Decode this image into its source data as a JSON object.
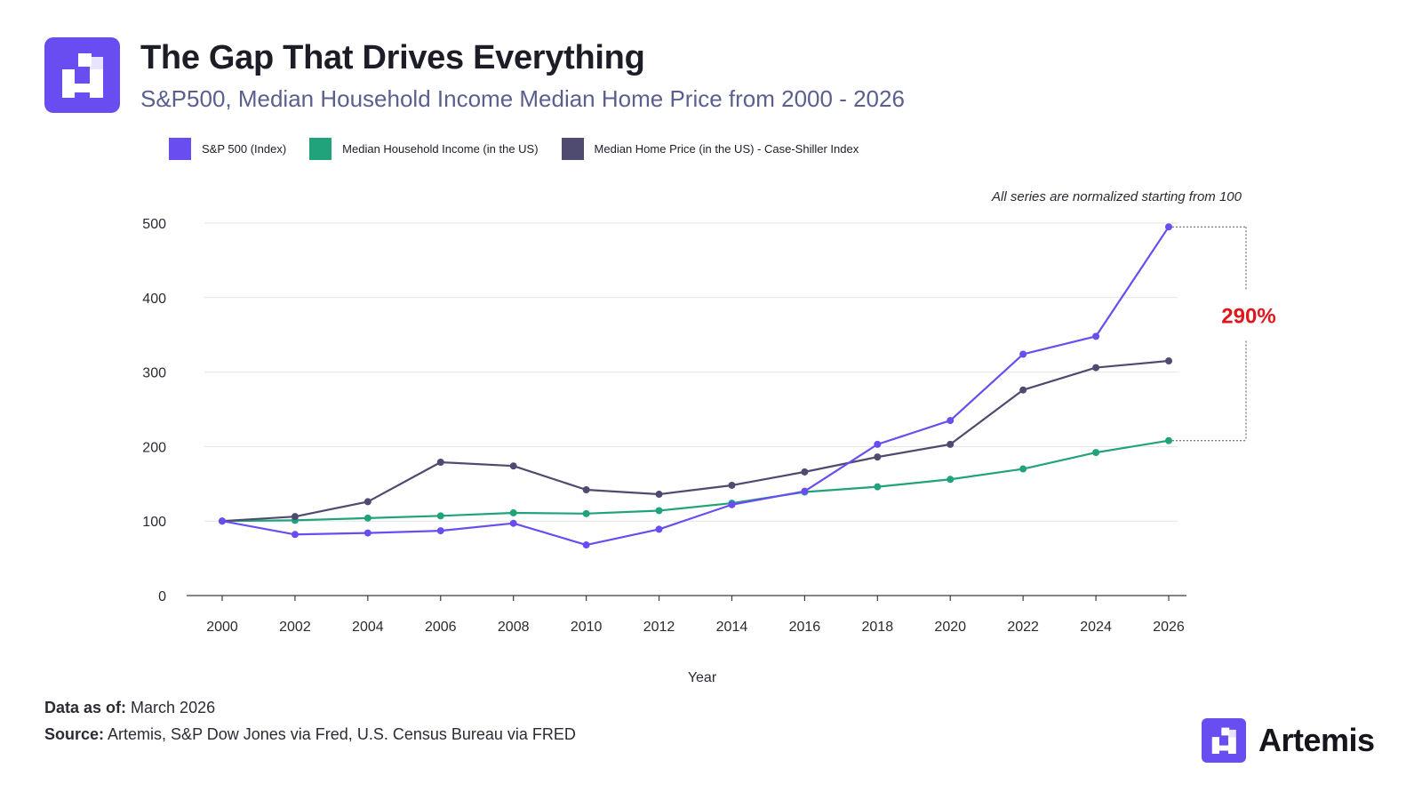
{
  "header": {
    "title": "The Gap That Drives Everything",
    "subtitle": "S&P500, Median Household Income Median Home Price from 2000 - 2026"
  },
  "legend": [
    {
      "label": "S&P 500 (Index)",
      "color": "#6a4df0"
    },
    {
      "label": "Median Household Income (in the US)",
      "color": "#20a27a"
    },
    {
      "label": "Median Home Price (in the US) - Case-Shiller Index",
      "color": "#4f4a70"
    }
  ],
  "chart_data": {
    "type": "line",
    "title": "The Gap That Drives Everything",
    "xlabel": "Year",
    "ylabel": "",
    "ylim": [
      0,
      500
    ],
    "yticks": [
      "0",
      "100",
      "200",
      "300",
      "400",
      "500"
    ],
    "x": [
      "2000",
      "2002",
      "2004",
      "2006",
      "2008",
      "2010",
      "2012",
      "2014",
      "2016",
      "2018",
      "2020",
      "2022",
      "2024",
      "2026"
    ],
    "grid": true,
    "note": "All series are normalized starting from 100",
    "annotation": {
      "label": "290%",
      "from_series": "Median Household Income (in the US)",
      "to_series": "S&P 500 (Index)",
      "color": "#e0161b"
    },
    "series": [
      {
        "name": "S&P 500 (Index)",
        "color": "#6a4df0",
        "values": [
          100,
          82,
          84,
          87,
          97,
          68,
          89,
          122,
          140,
          203,
          235,
          324,
          348,
          495
        ]
      },
      {
        "name": "Median Household Income (in the US)",
        "color": "#20a27a",
        "values": [
          100,
          101,
          104,
          107,
          111,
          110,
          114,
          124,
          139,
          146,
          156,
          170,
          192,
          208
        ]
      },
      {
        "name": "Median Home Price (in the US) - Case-Shiller Index",
        "color": "#4f4a70",
        "values": [
          100,
          106,
          126,
          179,
          174,
          142,
          136,
          148,
          166,
          186,
          203,
          276,
          306,
          315
        ]
      }
    ]
  },
  "footer": {
    "data_as_of_label": "Data as of:",
    "data_as_of_value": "March 2026",
    "source_label": "Source:",
    "source_value": "Artemis, S&P Dow Jones via Fred, U.S. Census Bureau via FRED"
  },
  "brand": {
    "name": "Artemis"
  }
}
